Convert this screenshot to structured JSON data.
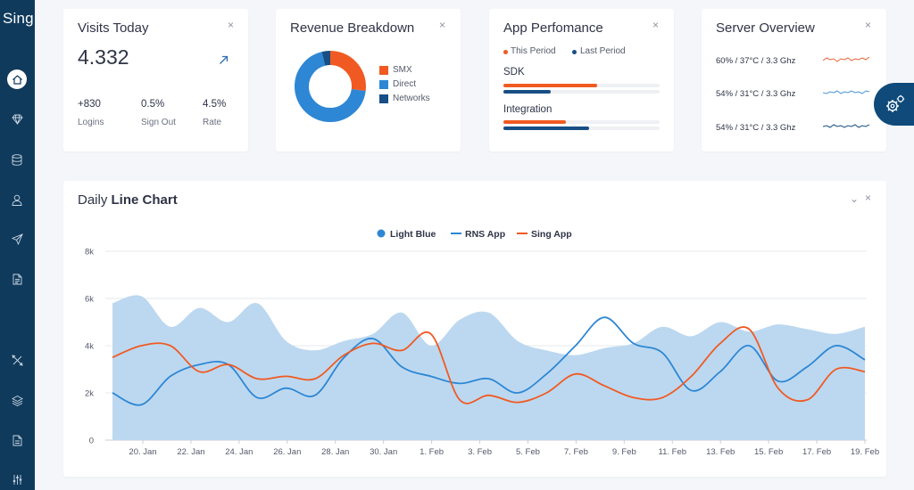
{
  "app": {
    "brand": "Sing"
  },
  "sidebar": {
    "icons": [
      "home-icon",
      "diamond-icon",
      "database-icon",
      "user-icon",
      "send-icon",
      "document-icon",
      "tools-icon",
      "layers-icon",
      "file-icon",
      "sliders-icon"
    ]
  },
  "visits": {
    "title": "Visits Today",
    "value": "4.332",
    "stats": [
      {
        "value": "+830",
        "label": "Logins"
      },
      {
        "value": "0.5%",
        "label": "Sign Out"
      },
      {
        "value": "4.5%",
        "label": "Rate"
      }
    ]
  },
  "revenue": {
    "title": "Revenue Breakdown",
    "slices": [
      {
        "name": "SMX",
        "value": 27,
        "color": "#f05a22"
      },
      {
        "name": "Direct",
        "value": 69,
        "color": "#2d87d4"
      },
      {
        "name": "Networks",
        "value": 4,
        "color": "#174e85"
      }
    ]
  },
  "performance": {
    "title": "App Perfomance",
    "legend": {
      "this_period": "This Period",
      "last_period": "Last Period"
    },
    "colors": {
      "this_period": "#f05a22",
      "last_period": "#174e85"
    },
    "rows": [
      {
        "label": "SDK",
        "this_period": 60,
        "last_period": 30
      },
      {
        "label": "Integration",
        "this_period": 40,
        "last_period": 55
      }
    ]
  },
  "server": {
    "title": "Server Overview",
    "rows": [
      {
        "text": "60% / 37°C / 3.3 Ghz",
        "color": "#e8653a"
      },
      {
        "text": "54% / 31°C / 3.3 Ghz",
        "color": "#4a96d9"
      },
      {
        "text": "54% / 31°C / 3.3 Ghz",
        "color": "#174e85"
      }
    ]
  },
  "chart_data": {
    "type": "line",
    "title_prefix": "Daily ",
    "title_bold": "Line Chart",
    "series": [
      {
        "name": "Light Blue",
        "kind": "area",
        "color": "#bcd8f0",
        "values": [
          5800,
          6100,
          4800,
          5600,
          5000,
          5800,
          4200,
          3800,
          4200,
          4500,
          5400,
          4000,
          5100,
          5400,
          4200,
          3800,
          3600,
          3900,
          4100,
          4800,
          4400,
          5000,
          4600,
          4900,
          4700,
          4500,
          4800
        ]
      },
      {
        "name": "RNS App",
        "kind": "line",
        "color": "#2d87d4",
        "values": [
          2000,
          1500,
          2700,
          3200,
          3200,
          1800,
          2200,
          1900,
          3500,
          4300,
          3100,
          2700,
          2400,
          2600,
          2000,
          2800,
          4000,
          5200,
          4100,
          3700,
          2100,
          2900,
          4000,
          2500,
          3100,
          4000,
          3400
        ]
      },
      {
        "name": "Sing App",
        "kind": "line",
        "color": "#f05a22",
        "values": [
          3500,
          4000,
          4000,
          2900,
          3200,
          2600,
          2700,
          2600,
          3600,
          4100,
          3800,
          4500,
          1700,
          1900,
          1600,
          2000,
          2800,
          2300,
          1800,
          1800,
          2700,
          4100,
          4700,
          2200,
          1700,
          3000,
          2900
        ]
      }
    ],
    "x_labels": [
      "20. Jan",
      "22. Jan",
      "24. Jan",
      "26. Jan",
      "28. Jan",
      "30. Jan",
      "1. Feb",
      "3. Feb",
      "5. Feb",
      "7. Feb",
      "9. Feb",
      "11. Feb",
      "13. Feb",
      "15. Feb",
      "17. Feb",
      "19. Feb"
    ],
    "y_ticks": [
      "0",
      "2k",
      "4k",
      "6k",
      "8k"
    ],
    "ylim": [
      0,
      8000
    ],
    "grid": true,
    "legend_position": "top-center"
  },
  "ui": {
    "close_symbol": "×",
    "collapse_symbol": "⌄"
  }
}
